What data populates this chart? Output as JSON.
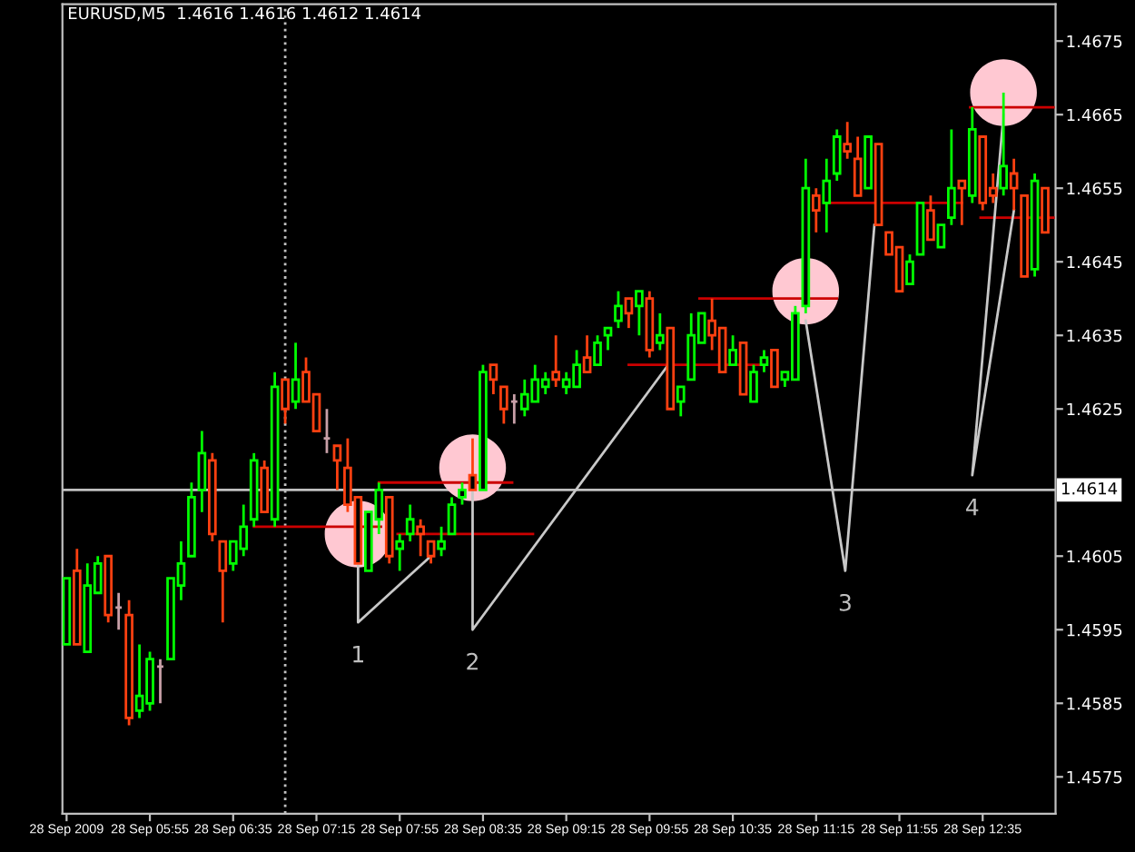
{
  "chart_data": {
    "type": "candlestick",
    "title": "EURUSD,M5  1.4616 1.4616 1.4612 1.4614",
    "x": [
      "2009-09-28T05:15",
      "2009-09-28T05:20",
      "2009-09-28T05:25",
      "2009-09-28T05:30",
      "2009-09-28T05:35",
      "2009-09-28T05:40",
      "2009-09-28T05:45",
      "2009-09-28T05:50",
      "2009-09-28T05:55",
      "2009-09-28T06:00",
      "2009-09-28T06:05",
      "2009-09-28T06:10",
      "2009-09-28T06:15",
      "2009-09-28T06:20",
      "2009-09-28T06:25",
      "2009-09-28T06:30",
      "2009-09-28T06:35",
      "2009-09-28T06:40",
      "2009-09-28T06:45",
      "2009-09-28T06:50",
      "2009-09-28T06:55",
      "2009-09-28T07:00",
      "2009-09-28T07:05",
      "2009-09-28T07:10",
      "2009-09-28T07:15",
      "2009-09-28T07:20",
      "2009-09-28T07:25",
      "2009-09-28T07:30",
      "2009-09-28T07:35",
      "2009-09-28T07:40",
      "2009-09-28T07:45",
      "2009-09-28T07:50",
      "2009-09-28T07:55",
      "2009-09-28T08:00",
      "2009-09-28T08:05",
      "2009-09-28T08:10",
      "2009-09-28T08:15",
      "2009-09-28T08:20",
      "2009-09-28T08:25",
      "2009-09-28T08:30",
      "2009-09-28T08:35",
      "2009-09-28T08:40",
      "2009-09-28T08:45",
      "2009-09-28T08:50",
      "2009-09-28T08:55",
      "2009-09-28T09:00",
      "2009-09-28T09:05",
      "2009-09-28T09:10",
      "2009-09-28T09:15",
      "2009-09-28T09:20",
      "2009-09-28T09:25",
      "2009-09-28T09:30",
      "2009-09-28T09:35",
      "2009-09-28T09:40",
      "2009-09-28T09:45",
      "2009-09-28T09:50",
      "2009-09-28T09:55",
      "2009-09-28T10:00",
      "2009-09-28T10:05",
      "2009-09-28T10:10",
      "2009-09-28T10:15",
      "2009-09-28T10:20",
      "2009-09-28T10:25",
      "2009-09-28T10:30",
      "2009-09-28T10:35",
      "2009-09-28T10:40",
      "2009-09-28T10:45",
      "2009-09-28T10:50",
      "2009-09-28T10:55",
      "2009-09-28T11:00",
      "2009-09-28T11:05",
      "2009-09-28T11:10",
      "2009-09-28T11:15",
      "2009-09-28T11:20",
      "2009-09-28T11:25",
      "2009-09-28T11:30",
      "2009-09-28T11:35",
      "2009-09-28T11:40",
      "2009-09-28T11:45",
      "2009-09-28T11:50",
      "2009-09-28T11:55",
      "2009-09-28T12:00",
      "2009-09-28T12:05",
      "2009-09-28T12:10",
      "2009-09-28T12:15",
      "2009-09-28T12:20",
      "2009-09-28T12:25",
      "2009-09-28T12:30",
      "2009-09-28T12:35",
      "2009-09-28T12:40",
      "2009-09-28T12:45",
      "2009-09-28T12:50",
      "2009-09-28T12:55",
      "2009-09-28T13:00",
      "2009-09-28T13:05"
    ],
    "ohlc": [
      [
        1.4593,
        1.4602,
        1.4593,
        1.4602
      ],
      [
        1.4603,
        1.4606,
        1.4593,
        1.4593
      ],
      [
        1.4592,
        1.4604,
        1.4592,
        1.4601
      ],
      [
        1.46,
        1.4605,
        1.46,
        1.4604
      ],
      [
        1.4605,
        1.4605,
        1.4596,
        1.4597
      ],
      [
        1.4598,
        1.46,
        1.4595,
        1.4598
      ],
      [
        1.4597,
        1.4599,
        1.4582,
        1.4583
      ],
      [
        1.4584,
        1.4593,
        1.4583,
        1.4586
      ],
      [
        1.4585,
        1.4592,
        1.4584,
        1.4591
      ],
      [
        1.459,
        1.4591,
        1.4585,
        1.459
      ],
      [
        1.4591,
        1.4602,
        1.4591,
        1.4602
      ],
      [
        1.4601,
        1.4607,
        1.4599,
        1.4604
      ],
      [
        1.4605,
        1.4615,
        1.4605,
        1.4613
      ],
      [
        1.4614,
        1.4622,
        1.4611,
        1.4619
      ],
      [
        1.4618,
        1.4619,
        1.4607,
        1.4608
      ],
      [
        1.4607,
        1.4607,
        1.4596,
        1.4603
      ],
      [
        1.4604,
        1.4607,
        1.4603,
        1.4607
      ],
      [
        1.4606,
        1.4612,
        1.4605,
        1.4609
      ],
      [
        1.461,
        1.4619,
        1.4609,
        1.4618
      ],
      [
        1.4617,
        1.4618,
        1.4611,
        1.4611
      ],
      [
        1.461,
        1.463,
        1.4609,
        1.4628
      ],
      [
        1.4629,
        1.4629,
        1.4623,
        1.4625
      ],
      [
        1.4626,
        1.4634,
        1.4625,
        1.4629
      ],
      [
        1.463,
        1.4632,
        1.4626,
        1.4626
      ],
      [
        1.4627,
        1.4627,
        1.4622,
        1.4622
      ],
      [
        1.4621,
        1.4625,
        1.4619,
        1.4621
      ],
      [
        1.462,
        1.462,
        1.4614,
        1.4618
      ],
      [
        1.4617,
        1.4621,
        1.4611,
        1.4612
      ],
      [
        1.4613,
        1.4613,
        1.4604,
        1.4604
      ],
      [
        1.4603,
        1.4611,
        1.4603,
        1.4611
      ],
      [
        1.461,
        1.4615,
        1.4608,
        1.4614
      ],
      [
        1.4613,
        1.4613,
        1.4604,
        1.4605
      ],
      [
        1.4606,
        1.4608,
        1.4603,
        1.4607
      ],
      [
        1.4608,
        1.4612,
        1.4607,
        1.461
      ],
      [
        1.4609,
        1.461,
        1.4605,
        1.4608
      ],
      [
        1.4607,
        1.4607,
        1.4604,
        1.4605
      ],
      [
        1.4606,
        1.4609,
        1.4605,
        1.4607
      ],
      [
        1.4608,
        1.4613,
        1.4608,
        1.4612
      ],
      [
        1.4613,
        1.4615,
        1.4612,
        1.4614
      ],
      [
        1.4616,
        1.4621,
        1.4614,
        1.4614
      ],
      [
        1.4614,
        1.4631,
        1.4614,
        1.463
      ],
      [
        1.4631,
        1.4631,
        1.4627,
        1.4629
      ],
      [
        1.4628,
        1.4628,
        1.4623,
        1.4625
      ],
      [
        1.4626,
        1.4627,
        1.4623,
        1.4626
      ],
      [
        1.4625,
        1.4629,
        1.4624,
        1.4627
      ],
      [
        1.4626,
        1.4631,
        1.4626,
        1.4629
      ],
      [
        1.4628,
        1.463,
        1.4627,
        1.4629
      ],
      [
        1.463,
        1.4635,
        1.4628,
        1.4629
      ],
      [
        1.4628,
        1.463,
        1.4627,
        1.4629
      ],
      [
        1.4628,
        1.4633,
        1.4628,
        1.4631
      ],
      [
        1.4632,
        1.4635,
        1.463,
        1.463
      ],
      [
        1.4631,
        1.4635,
        1.4631,
        1.4634
      ],
      [
        1.4635,
        1.4636,
        1.4633,
        1.4636
      ],
      [
        1.4637,
        1.4641,
        1.4636,
        1.4639
      ],
      [
        1.464,
        1.464,
        1.4636,
        1.4638
      ],
      [
        1.4639,
        1.4641,
        1.4635,
        1.4641
      ],
      [
        1.464,
        1.4641,
        1.4632,
        1.4633
      ],
      [
        1.4634,
        1.4638,
        1.4633,
        1.4635
      ],
      [
        1.4636,
        1.4636,
        1.4625,
        1.4625
      ],
      [
        1.4626,
        1.4628,
        1.4624,
        1.4628
      ],
      [
        1.4629,
        1.4638,
        1.4629,
        1.4635
      ],
      [
        1.4634,
        1.4638,
        1.4634,
        1.4638
      ],
      [
        1.4637,
        1.464,
        1.4633,
        1.4635
      ],
      [
        1.4636,
        1.4636,
        1.463,
        1.463
      ],
      [
        1.4631,
        1.4635,
        1.4631,
        1.4633
      ],
      [
        1.4634,
        1.4634,
        1.4627,
        1.4627
      ],
      [
        1.4626,
        1.4631,
        1.4626,
        1.463
      ],
      [
        1.4631,
        1.4633,
        1.463,
        1.4632
      ],
      [
        1.4633,
        1.4633,
        1.4628,
        1.4628
      ],
      [
        1.4629,
        1.463,
        1.4628,
        1.463
      ],
      [
        1.4629,
        1.4639,
        1.4629,
        1.4638
      ],
      [
        1.4639,
        1.4659,
        1.4638,
        1.4655
      ],
      [
        1.4654,
        1.4655,
        1.4649,
        1.4652
      ],
      [
        1.4653,
        1.4659,
        1.4649,
        1.4656
      ],
      [
        1.4657,
        1.4663,
        1.4656,
        1.4662
      ],
      [
        1.4661,
        1.4664,
        1.4659,
        1.466
      ],
      [
        1.4659,
        1.4662,
        1.4654,
        1.4654
      ],
      [
        1.4655,
        1.4662,
        1.4655,
        1.4662
      ],
      [
        1.4661,
        1.4661,
        1.465,
        1.465
      ],
      [
        1.4649,
        1.4649,
        1.4646,
        1.4646
      ],
      [
        1.4647,
        1.4647,
        1.4641,
        1.4641
      ],
      [
        1.4642,
        1.4646,
        1.4642,
        1.4645
      ],
      [
        1.4646,
        1.4653,
        1.4646,
        1.4653
      ],
      [
        1.4652,
        1.4654,
        1.4648,
        1.4648
      ],
      [
        1.4647,
        1.465,
        1.4647,
        1.465
      ],
      [
        1.4651,
        1.4663,
        1.465,
        1.4655
      ],
      [
        1.4656,
        1.4656,
        1.465,
        1.4655
      ],
      [
        1.4654,
        1.4666,
        1.4653,
        1.4663
      ],
      [
        1.4662,
        1.4662,
        1.4652,
        1.4653
      ],
      [
        1.4655,
        1.4657,
        1.4653,
        1.4654
      ],
      [
        1.4655,
        1.4668,
        1.4654,
        1.4658
      ],
      [
        1.4657,
        1.4659,
        1.4652,
        1.4655
      ],
      [
        1.4654,
        1.4654,
        1.4643,
        1.4643
      ],
      [
        1.4644,
        1.4657,
        1.4643,
        1.4656
      ],
      [
        1.4655,
        1.4655,
        1.4649,
        1.4649
      ]
    ],
    "colors": [
      "#00ff00",
      "#ff4010",
      "#00ff00",
      "#00ff00",
      "#ff4010",
      "#c8a0a8",
      "#ff4010",
      "#00ff00",
      "#00ff00",
      "#c8a0a8",
      "#00ff00",
      "#00ff00",
      "#00ff00",
      "#00ff00",
      "#ff4010",
      "#ff4010",
      "#00ff00",
      "#00ff00",
      "#00ff00",
      "#ff4010",
      "#00ff00",
      "#ff4010",
      "#00ff00",
      "#ff4010",
      "#ff4010",
      "#c8a0a8",
      "#ff4010",
      "#ff4010",
      "#ff4010",
      "#00ff00",
      "#00ff00",
      "#ff4010",
      "#00ff00",
      "#00ff00",
      "#ff4010",
      "#ff4010",
      "#00ff00",
      "#00ff00",
      "#00ff00",
      "#ff4010",
      "#00ff00",
      "#ff4010",
      "#ff4010",
      "#c8a0a8",
      "#00ff00",
      "#00ff00",
      "#00ff00",
      "#ff4010",
      "#00ff00",
      "#00ff00",
      "#ff4010",
      "#00ff00",
      "#00ff00",
      "#00ff00",
      "#ff4010",
      "#00ff00",
      "#ff4010",
      "#00ff00",
      "#ff4010",
      "#00ff00",
      "#00ff00",
      "#00ff00",
      "#ff4010",
      "#ff4010",
      "#00ff00",
      "#ff4010",
      "#00ff00",
      "#00ff00",
      "#ff4010",
      "#00ff00",
      "#00ff00",
      "#00ff00",
      "#ff4010",
      "#00ff00",
      "#00ff00",
      "#ff4010",
      "#ff4010",
      "#00ff00",
      "#ff4010",
      "#ff4010",
      "#ff4010",
      "#00ff00",
      "#00ff00",
      "#ff4010",
      "#00ff00",
      "#00ff00",
      "#ff4010",
      "#00ff00",
      "#ff4010",
      "#ff4010",
      "#00ff00",
      "#ff4010",
      "#ff4010",
      "#00ff00",
      "#ff4010"
    ],
    "series": [
      {
        "type": "scatter",
        "color": "#ffc8d2",
        "x": [
          "2009-09-28T07:35",
          "2009-09-28T08:30",
          "2009-09-28T11:10",
          "2009-09-28T12:45"
        ],
        "values": [
          1.4608,
          1.4617,
          1.4641,
          1.4668
        ]
      },
      {
        "type": "line",
        "color": "#cc0000",
        "x": [
          "2009-09-28T06:45",
          "2009-09-28T07:46"
        ],
        "values": [
          1.4609,
          1.4609
        ]
      },
      {
        "type": "line",
        "color": "#cc0000",
        "x": [
          "2009-09-28T07:54",
          "2009-09-28T08:59"
        ],
        "values": [
          1.4608,
          1.4608
        ]
      },
      {
        "type": "line",
        "color": "#cc0000",
        "x": [
          "2009-09-28T07:45",
          "2009-09-28T08:49"
        ],
        "values": [
          1.4615,
          1.4615
        ]
      },
      {
        "type": "line",
        "color": "#cc0000",
        "x": [
          "2009-09-28T09:45",
          "2009-09-28T10:50"
        ],
        "values": [
          1.4631,
          1.4631
        ]
      },
      {
        "type": "line",
        "color": "#cc0000",
        "x": [
          "2009-09-28T10:19",
          "2009-09-28T11:25"
        ],
        "values": [
          1.464,
          1.464
        ]
      },
      {
        "type": "line",
        "color": "#cc0000",
        "x": [
          "2009-09-28T11:19",
          "2009-09-28T12:25"
        ],
        "values": [
          1.4653,
          1.4653
        ]
      },
      {
        "type": "line",
        "color": "#cc0000",
        "x": [
          "2009-09-28T12:34",
          "2009-09-28T13:09"
        ],
        "values": [
          1.4651,
          1.4651
        ]
      },
      {
        "type": "line",
        "color": "#cc0000",
        "x": [
          "2009-09-28T12:29",
          "2009-09-28T13:09"
        ],
        "values": [
          1.4666,
          1.4666
        ]
      },
      {
        "type": "line",
        "color": "#c8c8c8",
        "x": [
          "2009-09-28T07:35",
          "2009-09-28T07:35",
          "2009-09-28T08:10"
        ],
        "values": [
          1.4604,
          1.4596,
          1.4605
        ]
      },
      {
        "type": "line",
        "color": "#c8c8c8",
        "x": [
          "2009-09-28T08:30",
          "2009-09-28T08:30",
          "2009-09-28T10:04"
        ],
        "values": [
          1.4614,
          1.4595,
          1.4631
        ]
      },
      {
        "type": "line",
        "color": "#c8c8c8",
        "x": [
          "2009-09-28T11:10",
          "2009-09-28T11:29",
          "2009-09-28T11:43"
        ],
        "values": [
          1.4637,
          1.4603,
          1.465
        ]
      },
      {
        "type": "line",
        "color": "#c8c8c8",
        "x": [
          "2009-09-28T12:45",
          "2009-09-28T12:30",
          "2009-09-28T12:50"
        ],
        "values": [
          1.4665,
          1.4616,
          1.4652
        ]
      }
    ],
    "annotations": [
      {
        "text": "1",
        "x": "2009-09-28T07:35",
        "y": 1.4596
      },
      {
        "text": "2",
        "x": "2009-09-28T08:30",
        "y": 1.4595
      },
      {
        "text": "3",
        "x": "2009-09-28T11:29",
        "y": 1.4603
      },
      {
        "text": "4",
        "x": "2009-09-28T12:30",
        "y": 1.4616
      }
    ],
    "ref_lines": [
      {
        "axis": "x",
        "value": "2009-09-28T07:00",
        "color": "#c0c0c0",
        "line_style": "dotted"
      },
      {
        "axis": "y",
        "value": 1.4614,
        "label": "1.4614",
        "color": "#c0c0c0"
      }
    ],
    "xlim": [
      "2009-09-28T05:13",
      "2009-09-28T13:10"
    ],
    "xticks": [
      {
        "value": "2009-09-28T05:15",
        "label": "28 Sep 2009"
      },
      {
        "value": "2009-09-28T05:55",
        "label": "28 Sep 05:55"
      },
      {
        "value": "2009-09-28T06:35",
        "label": "28 Sep 06:35"
      },
      {
        "value": "2009-09-28T07:15",
        "label": "28 Sep 07:15"
      },
      {
        "value": "2009-09-28T07:55",
        "label": "28 Sep 07:55"
      },
      {
        "value": "2009-09-28T08:35",
        "label": "28 Sep 08:35"
      },
      {
        "value": "2009-09-28T09:15",
        "label": "28 Sep 09:15"
      },
      {
        "value": "2009-09-28T09:55",
        "label": "28 Sep 09:55"
      },
      {
        "value": "2009-09-28T10:35",
        "label": "28 Sep 10:35"
      },
      {
        "value": "2009-09-28T11:15",
        "label": "28 Sep 11:15"
      },
      {
        "value": "2009-09-28T11:55",
        "label": "28 Sep 11:55"
      },
      {
        "value": "2009-09-28T12:35",
        "label": "28 Sep 12:35"
      }
    ],
    "ylim": [
      1.457,
      1.468
    ],
    "yticks": [
      1.4575,
      1.4585,
      1.4595,
      1.4605,
      1.4625,
      1.4635,
      1.4645,
      1.4655,
      1.4665,
      1.4675
    ],
    "grid": false,
    "legend": false
  }
}
